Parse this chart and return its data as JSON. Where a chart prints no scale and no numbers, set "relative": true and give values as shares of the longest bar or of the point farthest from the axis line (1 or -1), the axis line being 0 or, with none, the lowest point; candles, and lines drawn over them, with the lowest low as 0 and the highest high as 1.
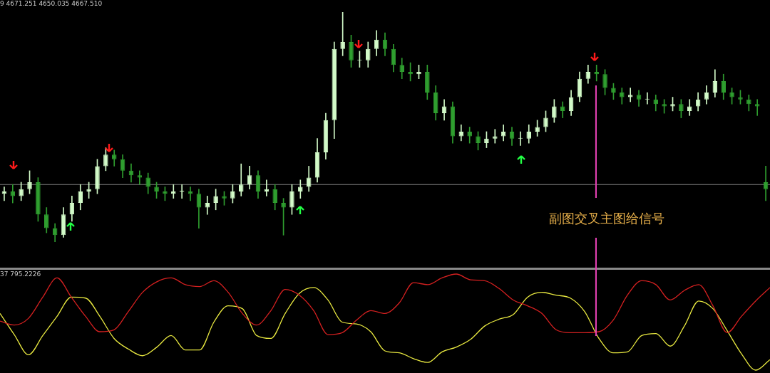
{
  "chart_data": [
    {
      "type": "candlestick",
      "relative": true,
      "colors": [
        "#d2fac8",
        "#2f9e2f",
        "#d2fac8",
        "#d2fac8",
        "#2f9e2f",
        "#2f9e2f",
        "#2f9e2f",
        "#d2fac8",
        "#d2fac8",
        "#d2fac8",
        "#d2fac8",
        "#d2fac8",
        "#d2fac8",
        "#2f9e2f",
        "#2f9e2f",
        "#2f9e2f",
        "#2f9e2f",
        "#2f9e2f",
        "#2f9e2f",
        "#2f9e2f",
        "#d2fac8",
        "#d2fac8",
        "#2f9e2f",
        "#2f9e2f",
        "#d2fac8",
        "#d2fac8",
        "#2f9e2f",
        "#d2fac8",
        "#d2fac8",
        "#d2fac8",
        "#2f9e2f",
        "#d2fac8",
        "#2f9e2f",
        "#2f9e2f",
        "#d2fac8",
        "#d2fac8",
        "#d2fac8",
        "#d2fac8",
        "#d2fac8",
        "#d2fac8",
        "#d2fac8",
        "#2f9e2f",
        "#d2fac8",
        "#d2fac8",
        "#d2fac8",
        "#2f9e2f",
        "#2f9e2f",
        "#2f9e2f",
        "#2f9e2f",
        "#d2fac8",
        "#2f9e2f",
        "#2f9e2f",
        "#d2fac8",
        "#2f9e2f",
        "#d2fac8",
        "#2f9e2f",
        "#2f9e2f",
        "#d2fac8",
        "#d2fac8",
        "#d2fac8",
        "#2f9e2f",
        "#d2fac8",
        "#d2fac8",
        "#d2fac8",
        "#d2fac8",
        "#d2fac8",
        "#2f9e2f",
        "#d2fac8",
        "#d2fac8",
        "#d2fac8",
        "#2f9e2f",
        "#2f9e2f",
        "#2f9e2f",
        "#2f9e2f",
        "#d2fac8",
        "#2f9e2f",
        "#d2fac8",
        "#2f9e2f",
        "#2f9e2f",
        "#d2fac8",
        "#2f9e2f",
        "#d2fac8",
        "#d2fac8",
        "#d2fac8",
        "#d2fac8",
        "#2f9e2f",
        "#2f9e2f",
        "#2f9e2f",
        "#2f9e2f",
        "#2f9e2f",
        "#2f9e2f"
      ],
      "annotations": [
        "9 4671.251 4650.035 4667.510",
        "副图交叉主图给信号"
      ],
      "categories": [
        null,
        null,
        null,
        null,
        null,
        null,
        null,
        null,
        null,
        null,
        null,
        null,
        null,
        null,
        null,
        null,
        null,
        null,
        null,
        null,
        null,
        null,
        null,
        null,
        null,
        null,
        null,
        null,
        null,
        null,
        null,
        null,
        null,
        null,
        null,
        null,
        null,
        null,
        null,
        null,
        null,
        null,
        null,
        null,
        null,
        null,
        null,
        null,
        null,
        null,
        null,
        null,
        null,
        null,
        null,
        null,
        null,
        null,
        null,
        null,
        null,
        null,
        null,
        null,
        null,
        null,
        null,
        null,
        null,
        null,
        null,
        null,
        null,
        null,
        null,
        null,
        null,
        null,
        null,
        null,
        null,
        null,
        null,
        null,
        null,
        null,
        null,
        null,
        null,
        null,
        null
      ],
      "ohlc": [
        [
          0.21,
          0.24,
          0.18,
          0.22
        ],
        [
          0.22,
          0.25,
          0.17,
          0.2
        ],
        [
          0.2,
          0.26,
          0.18,
          0.23
        ],
        [
          0.23,
          0.31,
          0.21,
          0.26
        ],
        [
          0.26,
          0.28,
          0.09,
          0.12
        ],
        [
          0.12,
          0.15,
          0.04,
          0.06
        ],
        [
          0.06,
          0.08,
          0.0,
          0.03
        ],
        [
          0.03,
          0.15,
          0.02,
          0.12
        ],
        [
          0.12,
          0.2,
          0.09,
          0.17
        ],
        [
          0.17,
          0.25,
          0.14,
          0.22
        ],
        [
          0.22,
          0.26,
          0.19,
          0.23
        ],
        [
          0.23,
          0.36,
          0.21,
          0.33
        ],
        [
          0.33,
          0.41,
          0.31,
          0.38
        ],
        [
          0.38,
          0.4,
          0.33,
          0.36
        ],
        [
          0.36,
          0.38,
          0.28,
          0.31
        ],
        [
          0.31,
          0.34,
          0.26,
          0.29
        ],
        [
          0.29,
          0.31,
          0.25,
          0.28
        ],
        [
          0.28,
          0.3,
          0.21,
          0.24
        ],
        [
          0.24,
          0.26,
          0.19,
          0.22
        ],
        [
          0.22,
          0.24,
          0.18,
          0.21
        ],
        [
          0.21,
          0.25,
          0.19,
          0.22
        ],
        [
          0.22,
          0.25,
          0.19,
          0.22
        ],
        [
          0.22,
          0.24,
          0.18,
          0.21
        ],
        [
          0.21,
          0.23,
          0.06,
          0.15
        ],
        [
          0.15,
          0.2,
          0.12,
          0.17
        ],
        [
          0.17,
          0.23,
          0.14,
          0.2
        ],
        [
          0.2,
          0.22,
          0.16,
          0.19
        ],
        [
          0.19,
          0.25,
          0.17,
          0.22
        ],
        [
          0.22,
          0.34,
          0.2,
          0.25
        ],
        [
          0.25,
          0.33,
          0.23,
          0.29
        ],
        [
          0.29,
          0.31,
          0.19,
          0.22
        ],
        [
          0.22,
          0.27,
          0.2,
          0.23
        ],
        [
          0.23,
          0.25,
          0.14,
          0.17
        ],
        [
          0.17,
          0.19,
          0.03,
          0.15
        ],
        [
          0.15,
          0.25,
          0.12,
          0.22
        ],
        [
          0.22,
          0.27,
          0.19,
          0.24
        ],
        [
          0.24,
          0.33,
          0.22,
          0.28
        ],
        [
          0.28,
          0.45,
          0.26,
          0.39
        ],
        [
          0.39,
          0.56,
          0.36,
          0.53
        ],
        [
          0.53,
          0.87,
          0.45,
          0.84
        ],
        [
          0.84,
          1.0,
          0.81,
          0.87
        ],
        [
          0.87,
          0.9,
          0.76,
          0.79
        ],
        [
          0.79,
          0.83,
          0.76,
          0.79
        ],
        [
          0.79,
          0.87,
          0.76,
          0.84
        ],
        [
          0.84,
          0.92,
          0.81,
          0.88
        ],
        [
          0.88,
          0.91,
          0.81,
          0.84
        ],
        [
          0.84,
          0.86,
          0.74,
          0.77
        ],
        [
          0.77,
          0.8,
          0.71,
          0.74
        ],
        [
          0.74,
          0.78,
          0.7,
          0.73
        ],
        [
          0.73,
          0.77,
          0.71,
          0.74
        ],
        [
          0.74,
          0.77,
          0.62,
          0.65
        ],
        [
          0.65,
          0.68,
          0.53,
          0.56
        ],
        [
          0.56,
          0.62,
          0.53,
          0.59
        ],
        [
          0.59,
          0.61,
          0.43,
          0.46
        ],
        [
          0.46,
          0.51,
          0.44,
          0.48
        ],
        [
          0.48,
          0.5,
          0.43,
          0.46
        ],
        [
          0.46,
          0.48,
          0.4,
          0.43
        ],
        [
          0.43,
          0.48,
          0.41,
          0.45
        ],
        [
          0.45,
          0.49,
          0.43,
          0.46
        ],
        [
          0.46,
          0.51,
          0.44,
          0.48
        ],
        [
          0.48,
          0.5,
          0.42,
          0.45
        ],
        [
          0.45,
          0.48,
          0.42,
          0.45
        ],
        [
          0.45,
          0.51,
          0.43,
          0.48
        ],
        [
          0.48,
          0.53,
          0.46,
          0.5
        ],
        [
          0.5,
          0.57,
          0.48,
          0.54
        ],
        [
          0.54,
          0.62,
          0.52,
          0.59
        ],
        [
          0.59,
          0.61,
          0.54,
          0.57
        ],
        [
          0.57,
          0.66,
          0.55,
          0.63
        ],
        [
          0.63,
          0.74,
          0.61,
          0.71
        ],
        [
          0.71,
          0.77,
          0.69,
          0.74
        ],
        [
          0.74,
          0.77,
          0.7,
          0.73
        ],
        [
          0.73,
          0.75,
          0.64,
          0.67
        ],
        [
          0.67,
          0.69,
          0.62,
          0.65
        ],
        [
          0.65,
          0.67,
          0.6,
          0.63
        ],
        [
          0.63,
          0.67,
          0.61,
          0.64
        ],
        [
          0.64,
          0.66,
          0.59,
          0.62
        ],
        [
          0.62,
          0.65,
          0.6,
          0.62
        ],
        [
          0.62,
          0.64,
          0.57,
          0.6
        ],
        [
          0.6,
          0.62,
          0.56,
          0.59
        ],
        [
          0.59,
          0.63,
          0.57,
          0.6
        ],
        [
          0.6,
          0.62,
          0.54,
          0.57
        ],
        [
          0.57,
          0.62,
          0.55,
          0.59
        ],
        [
          0.59,
          0.65,
          0.57,
          0.62
        ],
        [
          0.62,
          0.68,
          0.6,
          0.65
        ],
        [
          0.65,
          0.75,
          0.63,
          0.7
        ],
        [
          0.7,
          0.73,
          0.62,
          0.65
        ],
        [
          0.65,
          0.67,
          0.6,
          0.63
        ],
        [
          0.63,
          0.66,
          0.6,
          0.62
        ],
        [
          0.62,
          0.64,
          0.57,
          0.6
        ],
        [
          0.6,
          0.62,
          0.55,
          0.59
        ],
        [
          0.26,
          0.33,
          0.18,
          0.23
        ]
      ],
      "ref_lines": [
        {
          "axis": "y",
          "value": 0.25,
          "color": "#808080"
        }
      ]
    },
    {
      "type": "line",
      "relative": true,
      "annotations": [
        "37 795.2226"
      ],
      "categories": [
        null,
        null,
        null,
        null,
        null,
        null,
        null,
        null,
        null,
        null,
        null,
        null,
        null,
        null,
        null,
        null,
        null,
        null,
        null,
        null,
        null,
        null,
        null,
        null,
        null,
        null,
        null,
        null,
        null,
        null,
        null,
        null,
        null,
        null,
        null,
        null,
        null,
        null,
        null,
        null,
        null,
        null,
        null,
        null,
        null,
        null,
        null,
        null,
        null,
        null,
        null,
        null,
        null,
        null,
        null
      ],
      "series": [
        {
          "color": "#d42020",
          "values": [
            0.51,
            0.47,
            0.54,
            0.76,
            0.96,
            0.76,
            0.56,
            0.4,
            0.42,
            0.61,
            0.81,
            0.92,
            0.96,
            0.89,
            0.87,
            0.93,
            0.81,
            0.59,
            0.47,
            0.62,
            0.84,
            0.78,
            0.62,
            0.37,
            0.39,
            0.52,
            0.62,
            0.59,
            0.7,
            0.91,
            0.89,
            0.96,
            1.0,
            0.94,
            0.93,
            0.85,
            0.73,
            0.67,
            0.59,
            0.42,
            0.39,
            0.39,
            0.4,
            0.52,
            0.78,
            0.93,
            0.89,
            0.73,
            0.83,
            0.89,
            0.67,
            0.39,
            0.56,
            0.72,
            0.86
          ]
        },
        {
          "color": "#e8e840",
          "values": [
            0.59,
            0.37,
            0.16,
            0.36,
            0.56,
            0.76,
            0.75,
            0.56,
            0.33,
            0.22,
            0.15,
            0.24,
            0.36,
            0.21,
            0.21,
            0.5,
            0.67,
            0.64,
            0.36,
            0.33,
            0.59,
            0.8,
            0.86,
            0.73,
            0.5,
            0.48,
            0.4,
            0.2,
            0.18,
            0.12,
            0.08,
            0.19,
            0.24,
            0.32,
            0.46,
            0.53,
            0.58,
            0.76,
            0.81,
            0.78,
            0.75,
            0.61,
            0.33,
            0.18,
            0.19,
            0.36,
            0.38,
            0.25,
            0.46,
            0.72,
            0.64,
            0.41,
            0.17,
            0.0,
            0.11
          ]
        }
      ]
    }
  ]
}
